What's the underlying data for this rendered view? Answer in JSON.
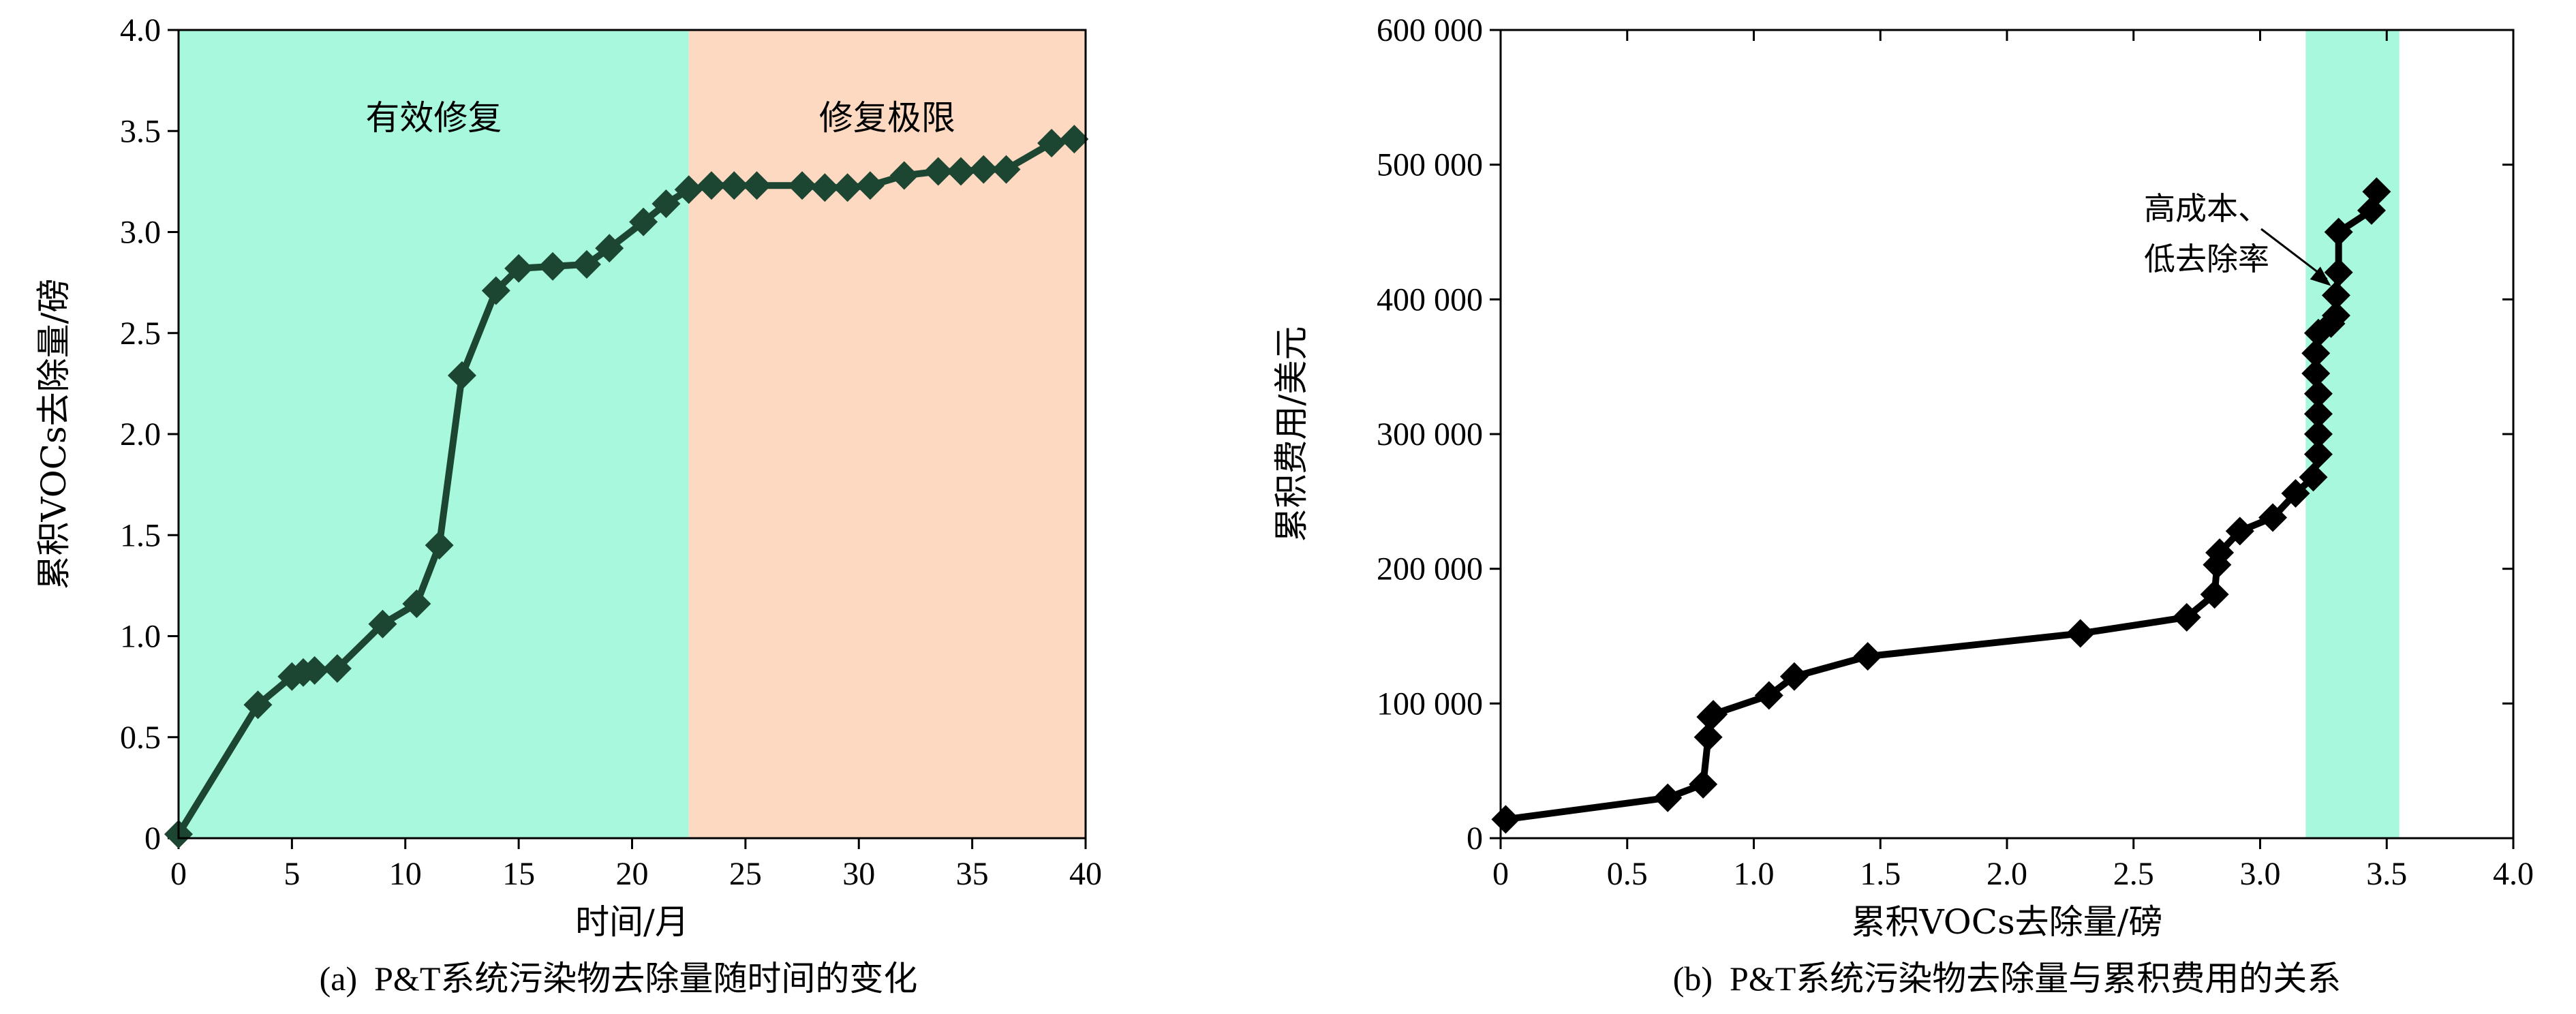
{
  "colors": {
    "effective": "#a8f8de",
    "limit": "#fed9c2",
    "lineA": "#1c4632",
    "lineB": "#000000",
    "band": "#a8f8de"
  },
  "chart_data": [
    {
      "type": "line",
      "caption": "(a)  P&T系统污染物去除量随时间的变化",
      "xlabel": "时间/月",
      "ylabel": "累积VOCs去除量/磅",
      "xlim": [
        0,
        40
      ],
      "ylim": [
        0,
        4
      ],
      "x_ticks": [
        "0",
        "5",
        "10",
        "15",
        "20",
        "25",
        "30",
        "35",
        "40"
      ],
      "y_ticks": [
        "0",
        "0.5",
        "1.0",
        "1.5",
        "2.0",
        "2.5",
        "3.0",
        "3.5",
        "4.0"
      ],
      "regions": [
        {
          "label": "有效修复",
          "x_range": [
            0,
            22.5
          ],
          "color": "#a8f8de"
        },
        {
          "label": "修复极限",
          "x_range": [
            22.5,
            40
          ],
          "color": "#fed9c2"
        }
      ],
      "x": [
        0,
        3.5,
        5,
        5.5,
        6,
        7,
        9,
        10.5,
        11.5,
        12.5,
        14,
        15,
        16.5,
        18,
        19,
        20.5,
        21.5,
        22.5,
        23.5,
        24.5,
        25.5,
        27.5,
        28.5,
        29.5,
        30.5,
        32,
        33.5,
        34.5,
        35.5,
        36.5,
        38.5,
        39.5
      ],
      "y": [
        0.02,
        0.66,
        0.8,
        0.82,
        0.83,
        0.84,
        1.06,
        1.16,
        1.45,
        2.29,
        2.71,
        2.82,
        2.83,
        2.84,
        2.92,
        3.05,
        3.14,
        3.21,
        3.23,
        3.23,
        3.23,
        3.23,
        3.22,
        3.22,
        3.23,
        3.28,
        3.3,
        3.3,
        3.31,
        3.31,
        3.44,
        3.46
      ]
    },
    {
      "type": "line",
      "caption": "(b)  P&T系统污染物去除量与累积费用的关系",
      "xlabel": "累积VOCs去除量/磅",
      "ylabel": "累积费用/美元",
      "xlim": [
        0,
        4
      ],
      "ylim": [
        0,
        600000
      ],
      "x_ticks": [
        "0",
        "0.5",
        "1.0",
        "1.5",
        "2.0",
        "2.5",
        "3.0",
        "3.5",
        "4.0"
      ],
      "y_ticks": [
        "0",
        "100 000",
        "200 000",
        "300 000",
        "400 000",
        "500 000",
        "600 000"
      ],
      "band": {
        "x_range": [
          3.18,
          3.55
        ],
        "color": "#a8f8de"
      },
      "annotation": {
        "lines": [
          "高成本、",
          "低去除率"
        ]
      },
      "x": [
        0.02,
        0.66,
        0.8,
        0.82,
        0.83,
        0.84,
        1.06,
        1.16,
        1.45,
        2.29,
        2.71,
        2.82,
        2.83,
        2.84,
        2.92,
        3.05,
        3.14,
        3.21,
        3.23,
        3.23,
        3.23,
        3.23,
        3.22,
        3.22,
        3.23,
        3.28,
        3.3,
        3.3,
        3.31,
        3.31,
        3.44,
        3.46
      ],
      "y": [
        14000,
        30000,
        40000,
        75000,
        90000,
        92000,
        106000,
        120000,
        135000,
        152000,
        164000,
        181000,
        203000,
        212000,
        228000,
        238000,
        256000,
        268000,
        285000,
        300000,
        315000,
        330000,
        345000,
        360000,
        375000,
        382000,
        388000,
        403000,
        420000,
        450000,
        466000,
        480000
      ]
    }
  ]
}
